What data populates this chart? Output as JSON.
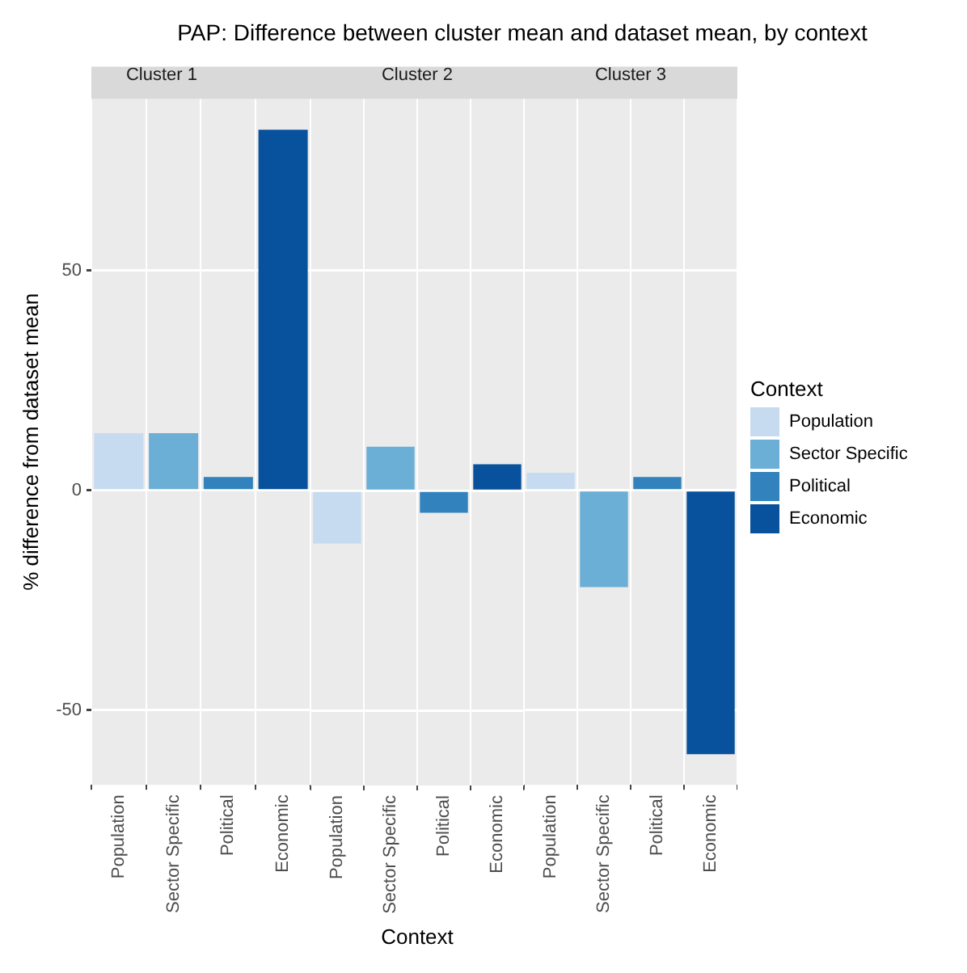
{
  "chart_data": [
    {
      "type": "bar",
      "title": "PAP: Difference between cluster mean and dataset mean, by context",
      "subtitle": "Cluster 1",
      "ylabel": "% difference from dataset mean",
      "categories": [
        "Population",
        "Sector Specific",
        "Political",
        "Economic"
      ],
      "series": [
        {
          "color": "#c6dbef",
          "values": [
            13,
            null,
            null,
            null
          ]
        },
        {
          "color": "#6baed6",
          "values": [
            null,
            13,
            null,
            null
          ]
        },
        {
          "color": "#3182bd",
          "values": [
            null,
            null,
            3,
            null
          ]
        },
        {
          "color": "#08519c",
          "values": [
            null,
            null,
            null,
            82
          ]
        }
      ],
      "ylim": [
        -67,
        89
      ],
      "yticks": [
        -50,
        0,
        50
      ],
      "grid": true
    },
    {
      "type": "bar",
      "subtitle": "Cluster 2",
      "xlabel": "Context",
      "categories": [
        "Population",
        "Sector Specific",
        "Political",
        "Economic"
      ],
      "series": [
        {
          "color": "#c6dbef",
          "values": [
            -12,
            null,
            null,
            null
          ]
        },
        {
          "color": "#6baed6",
          "values": [
            null,
            10,
            null,
            null
          ]
        },
        {
          "color": "#3182bd",
          "values": [
            null,
            null,
            -5,
            null
          ]
        },
        {
          "color": "#08519c",
          "values": [
            null,
            null,
            null,
            6
          ]
        }
      ],
      "ylim": [
        -67,
        89
      ],
      "yticks": [
        -50,
        0,
        50
      ],
      "grid": true,
      "tick_labels": "x"
    },
    {
      "type": "bar",
      "subtitle": "Cluster 3",
      "legend_title": "Context",
      "legend": "right",
      "categories": [
        "Population",
        "Sector Specific",
        "Political",
        "Economic"
      ],
      "series": [
        {
          "name": "Population",
          "color": "#c6dbef",
          "values": [
            4,
            null,
            null,
            null
          ]
        },
        {
          "name": "Sector Specific",
          "color": "#6baed6",
          "values": [
            null,
            -22,
            null,
            null
          ]
        },
        {
          "name": "Political",
          "color": "#3182bd",
          "values": [
            null,
            null,
            3,
            null
          ]
        },
        {
          "name": "Economic",
          "color": "#08519c",
          "values": [
            null,
            null,
            null,
            -60
          ]
        }
      ],
      "ylim": [
        -67,
        89
      ],
      "yticks": [
        -50,
        0,
        50
      ],
      "grid": true,
      "tick_labels": "x"
    }
  ]
}
